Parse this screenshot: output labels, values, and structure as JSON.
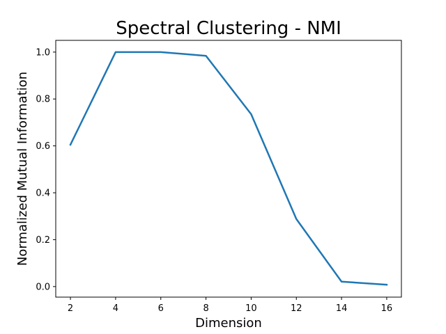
{
  "chart_data": {
    "type": "line",
    "title": "Spectral Clustering - NMI",
    "xlabel": "Dimension",
    "ylabel": "Normalized Mutual Information",
    "xlim": [
      1.35,
      16.65
    ],
    "ylim": [
      -0.045,
      1.05
    ],
    "xticks": [
      2,
      4,
      6,
      8,
      10,
      12,
      14,
      16
    ],
    "yticks": [
      0.0,
      0.2,
      0.4,
      0.6,
      0.8,
      1.0
    ],
    "ytick_labels": [
      "0.0",
      "0.2",
      "0.4",
      "0.6",
      "0.8",
      "1.0"
    ],
    "grid": false,
    "series": [
      {
        "color": "#1f77b4",
        "x": [
          2,
          4,
          6,
          8,
          10,
          12,
          14,
          16
        ],
        "y": [
          0.605,
          1.0,
          1.0,
          0.984,
          0.735,
          0.288,
          0.021,
          0.008
        ]
      }
    ]
  }
}
